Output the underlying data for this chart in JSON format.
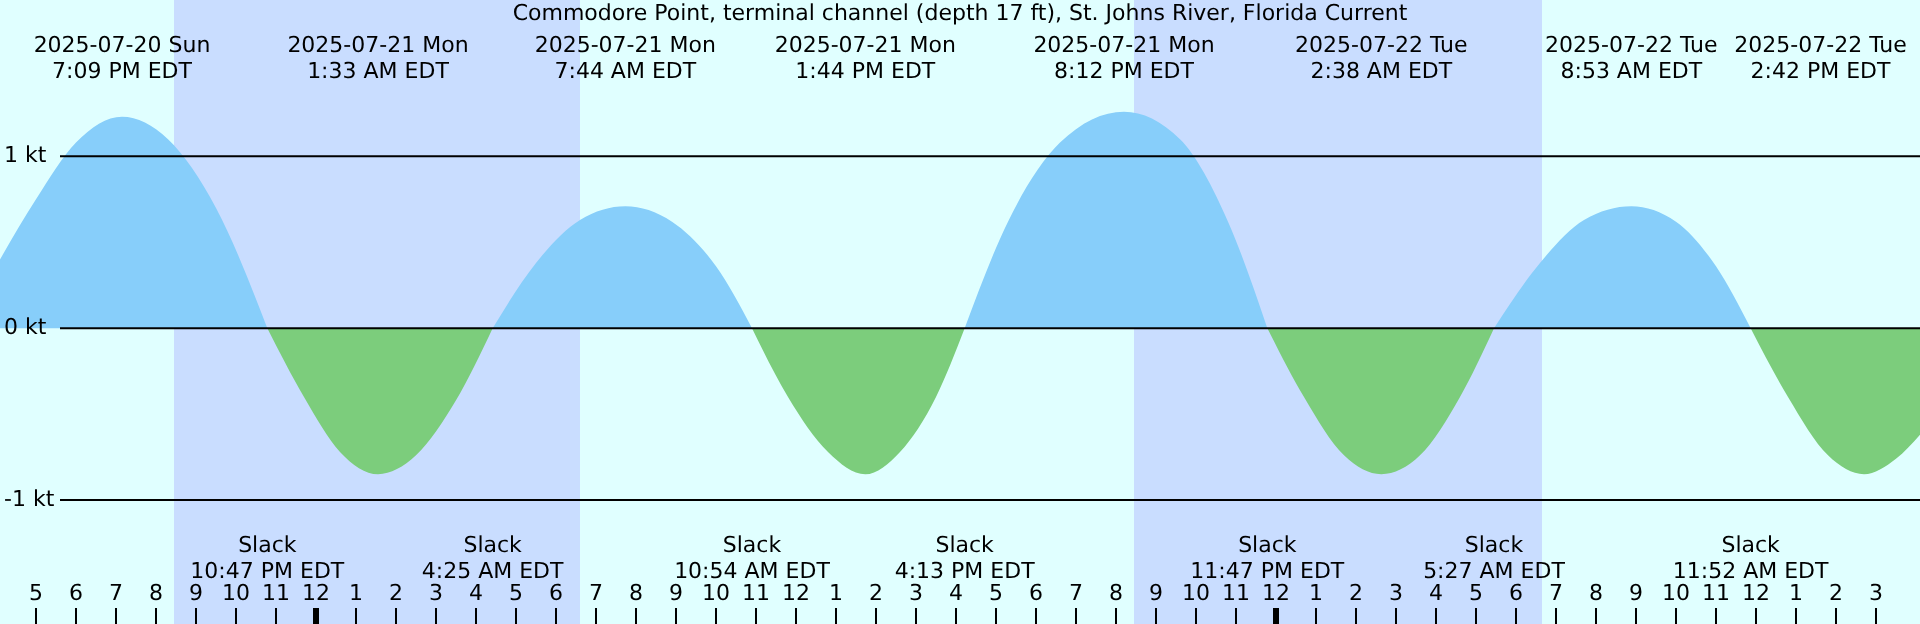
{
  "chart_data": {
    "type": "area",
    "title": "Commodore Point, terminal channel (depth 17 ft), St. Johns River, Florida Current",
    "x": [
      "2025-07-20T16:06",
      "2025-07-20T17:00",
      "2025-07-20T18:00",
      "2025-07-20T19:09",
      "2025-07-20T20:18",
      "2025-07-20T21:30",
      "2025-07-20T22:47",
      "2025-07-20T23:42",
      "2025-07-21T00:36",
      "2025-07-21T01:33",
      "2025-07-21T02:30",
      "2025-07-21T03:30",
      "2025-07-21T04:25",
      "2025-07-21T05:30",
      "2025-07-21T06:36",
      "2025-07-21T07:44",
      "2025-07-21T08:54",
      "2025-07-21T10:00",
      "2025-07-21T10:54",
      "2025-07-21T11:48",
      "2025-07-21T12:48",
      "2025-07-21T13:44",
      "2025-07-21T14:36",
      "2025-07-21T15:30",
      "2025-07-21T16:13",
      "2025-07-21T17:18",
      "2025-07-21T18:36",
      "2025-07-21T20:12",
      "2025-07-21T21:36",
      "2025-07-21T22:48",
      "2025-07-21T23:47",
      "2025-07-22T00:42",
      "2025-07-22T01:42",
      "2025-07-22T02:38",
      "2025-07-22T03:36",
      "2025-07-22T04:36",
      "2025-07-22T05:27",
      "2025-07-22T06:36",
      "2025-07-22T07:42",
      "2025-07-22T08:53",
      "2025-07-22T10:00",
      "2025-07-22T11:00",
      "2025-07-22T11:52",
      "2025-07-22T12:48",
      "2025-07-22T13:48",
      "2025-07-22T14:42",
      "2025-07-22T15:30",
      "2025-07-22T16:06"
    ],
    "series": [
      {
        "color": "#87cefa",
        "values": [
          0.4,
          0.75,
          1.08,
          1.23,
          1.1,
          0.7,
          0,
          null,
          null,
          null,
          null,
          null,
          0,
          0.38,
          0.63,
          0.71,
          0.62,
          0.36,
          0,
          null,
          null,
          null,
          null,
          null,
          0,
          0.62,
          1.08,
          1.26,
          1.1,
          0.62,
          0,
          null,
          null,
          null,
          null,
          null,
          0,
          0.38,
          0.63,
          0.71,
          0.62,
          0.36,
          0,
          null,
          null,
          null,
          null,
          null
        ]
      },
      {
        "color": "#7ccd7c",
        "values": [
          null,
          null,
          null,
          null,
          null,
          null,
          0,
          -0.4,
          -0.72,
          -0.85,
          -0.74,
          -0.42,
          0,
          null,
          null,
          null,
          null,
          null,
          0,
          -0.4,
          -0.72,
          -0.85,
          -0.72,
          -0.4,
          0,
          null,
          null,
          null,
          null,
          null,
          0,
          -0.4,
          -0.74,
          -0.85,
          -0.74,
          -0.4,
          0,
          null,
          null,
          null,
          null,
          null,
          0,
          -0.4,
          -0.74,
          -0.85,
          -0.76,
          -0.62
        ]
      }
    ],
    "xlim": [
      "2025-07-20T16:06",
      "2025-07-22T16:06"
    ],
    "xticks": [
      {
        "value": "2025-07-20T17:00",
        "label": "5"
      },
      {
        "value": "2025-07-20T18:00",
        "label": "6"
      },
      {
        "value": "2025-07-20T19:00",
        "label": "7"
      },
      {
        "value": "2025-07-20T20:00",
        "label": "8"
      },
      {
        "value": "2025-07-20T21:00",
        "label": "9"
      },
      {
        "value": "2025-07-20T22:00",
        "label": "10"
      },
      {
        "value": "2025-07-20T23:00",
        "label": "11"
      },
      {
        "value": "2025-07-21T00:00",
        "label": "12"
      },
      {
        "value": "2025-07-21T01:00",
        "label": "1"
      },
      {
        "value": "2025-07-21T02:00",
        "label": "2"
      },
      {
        "value": "2025-07-21T03:00",
        "label": "3"
      },
      {
        "value": "2025-07-21T04:00",
        "label": "4"
      },
      {
        "value": "2025-07-21T05:00",
        "label": "5"
      },
      {
        "value": "2025-07-21T06:00",
        "label": "6"
      },
      {
        "value": "2025-07-21T07:00",
        "label": "7"
      },
      {
        "value": "2025-07-21T08:00",
        "label": "8"
      },
      {
        "value": "2025-07-21T09:00",
        "label": "9"
      },
      {
        "value": "2025-07-21T10:00",
        "label": "10"
      },
      {
        "value": "2025-07-21T11:00",
        "label": "11"
      },
      {
        "value": "2025-07-21T12:00",
        "label": "12"
      },
      {
        "value": "2025-07-21T13:00",
        "label": "1"
      },
      {
        "value": "2025-07-21T14:00",
        "label": "2"
      },
      {
        "value": "2025-07-21T15:00",
        "label": "3"
      },
      {
        "value": "2025-07-21T16:00",
        "label": "4"
      },
      {
        "value": "2025-07-21T17:00",
        "label": "5"
      },
      {
        "value": "2025-07-21T18:00",
        "label": "6"
      },
      {
        "value": "2025-07-21T19:00",
        "label": "7"
      },
      {
        "value": "2025-07-21T20:00",
        "label": "8"
      },
      {
        "value": "2025-07-21T21:00",
        "label": "9"
      },
      {
        "value": "2025-07-21T22:00",
        "label": "10"
      },
      {
        "value": "2025-07-21T23:00",
        "label": "11"
      },
      {
        "value": "2025-07-22T00:00",
        "label": "12"
      },
      {
        "value": "2025-07-22T01:00",
        "label": "1"
      },
      {
        "value": "2025-07-22T02:00",
        "label": "2"
      },
      {
        "value": "2025-07-22T03:00",
        "label": "3"
      },
      {
        "value": "2025-07-22T04:00",
        "label": "4"
      },
      {
        "value": "2025-07-22T05:00",
        "label": "5"
      },
      {
        "value": "2025-07-22T06:00",
        "label": "6"
      },
      {
        "value": "2025-07-22T07:00",
        "label": "7"
      },
      {
        "value": "2025-07-22T08:00",
        "label": "8"
      },
      {
        "value": "2025-07-22T09:00",
        "label": "9"
      },
      {
        "value": "2025-07-22T10:00",
        "label": "10"
      },
      {
        "value": "2025-07-22T11:00",
        "label": "11"
      },
      {
        "value": "2025-07-22T12:00",
        "label": "12"
      },
      {
        "value": "2025-07-22T13:00",
        "label": "1"
      },
      {
        "value": "2025-07-22T14:00",
        "label": "2"
      },
      {
        "value": "2025-07-22T15:00",
        "label": "3"
      }
    ],
    "ylim": [
      -1.71,
      1.91
    ],
    "yticks": [
      {
        "value": 1,
        "label": "1 kt"
      },
      {
        "value": 0,
        "label": "0 kt"
      },
      {
        "value": -1,
        "label": "-1 kt"
      }
    ],
    "grid": "y",
    "bands": [
      {
        "axis": "x",
        "from": "2025-07-20T20:27",
        "to": "2025-07-21T06:36",
        "color": "#c9ddff"
      },
      {
        "axis": "x",
        "from": "2025-07-21T20:27",
        "to": "2025-07-22T06:39",
        "color": "#c9ddff"
      }
    ],
    "annotations": [
      "2025-07-20 Sun\n7:09 PM EDT",
      "2025-07-21 Mon\n1:33 AM EDT",
      "2025-07-21 Mon\n7:44 AM EDT",
      "2025-07-21 Mon\n1:44 PM EDT",
      "2025-07-21 Mon\n8:12 PM EDT",
      "2025-07-22 Tue\n2:38 AM EDT",
      "2025-07-22 Tue\n8:53 AM EDT",
      "2025-07-22 Tue\n2:42 PM EDT",
      "Slack\n10:47 PM EDT",
      "Slack\n4:25 AM EDT",
      "Slack\n10:54 AM EDT",
      "Slack\n4:13 PM EDT",
      "Slack\n11:47 PM EDT",
      "Slack\n5:27 AM EDT",
      "Slack\n11:52 AM EDT"
    ]
  }
}
